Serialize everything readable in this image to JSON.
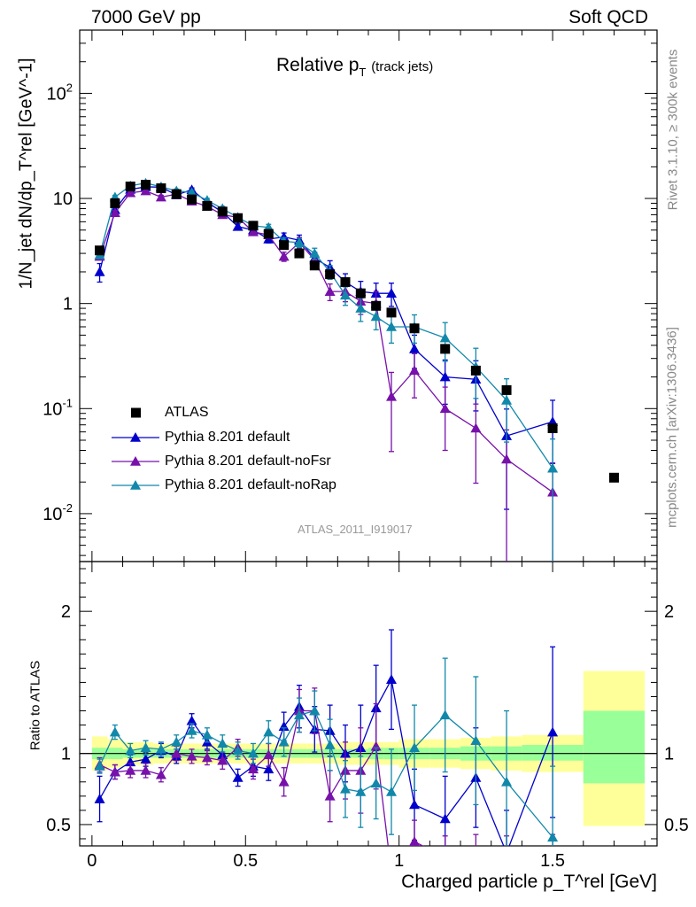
{
  "header": {
    "left": "7000 GeV pp",
    "right": "Soft QCD"
  },
  "main_plot": {
    "title": "Relative p",
    "title_sub": "T",
    "title_extra": "(track jets)",
    "ylabel": "1/N_jet dN/dp_T^rel [GeV^-1]",
    "watermark": "ATLAS_2011_I919017"
  },
  "ratio_plot": {
    "ylabel": "Ratio to ATLAS"
  },
  "side_notes": {
    "rivet": "Rivet 3.1.10, ≥ 300k events",
    "mcplots": "mcplots.cern.ch [arXiv:1306.3436]"
  },
  "xlabel": "Charged particle p_T^rel [GeV]",
  "legend": [
    {
      "label": "ATLAS",
      "color": "#000000",
      "marker": "square"
    },
    {
      "label": "Pythia 8.201 default",
      "color": "#0000cc",
      "marker": "triangle"
    },
    {
      "label": "Pythia 8.201 default-noFsr",
      "color": "#7711aa",
      "marker": "triangle"
    },
    {
      "label": "Pythia 8.201 default-noRap",
      "color": "#1188aa",
      "marker": "triangle"
    }
  ],
  "chart_data": {
    "type": "scatter",
    "x_range": [
      -0.04,
      1.84
    ],
    "main_y_log": true,
    "main_y_range": [
      0.0035,
      400
    ],
    "main_y_ticks": [
      {
        "v": 0.01,
        "label": "10^-2"
      },
      {
        "v": 0.1,
        "label": "10^-1"
      },
      {
        "v": 1,
        "label": "1"
      },
      {
        "v": 10,
        "label": "10"
      },
      {
        "v": 100,
        "label": "10^2"
      }
    ],
    "ratio_y_range": [
      0.35,
      2.35
    ],
    "ratio_y_ticks": [
      0.5,
      1,
      2
    ],
    "x_ticks": [
      0,
      0.5,
      1,
      1.5
    ],
    "x_tick_labels": [
      "0",
      "0.5",
      "1",
      "1.5"
    ],
    "data": {
      "name": "ATLAS",
      "x": [
        0.025,
        0.075,
        0.125,
        0.175,
        0.225,
        0.275,
        0.325,
        0.375,
        0.425,
        0.475,
        0.525,
        0.575,
        0.625,
        0.675,
        0.725,
        0.775,
        0.825,
        0.875,
        0.925,
        0.975,
        1.05,
        1.15,
        1.25,
        1.35,
        1.5,
        1.7
      ],
      "y": [
        3.2,
        9.0,
        13.0,
        13.5,
        12.5,
        11.0,
        9.8,
        8.5,
        7.5,
        6.5,
        5.5,
        4.6,
        3.6,
        3.0,
        2.3,
        1.9,
        1.6,
        1.25,
        0.95,
        0.82,
        0.58,
        0.37,
        0.23,
        0.15,
        0.065,
        0.022
      ],
      "band_edges": [
        0.0,
        0.05,
        0.1,
        0.15,
        0.2,
        0.25,
        0.3,
        0.35,
        0.4,
        0.45,
        0.5,
        0.55,
        0.6,
        0.65,
        0.7,
        0.75,
        0.8,
        0.85,
        0.9,
        0.95,
        1.0,
        1.1,
        1.2,
        1.3,
        1.4,
        1.6,
        1.8
      ],
      "stat_band": [
        [
          0.96,
          1.04
        ],
        [
          0.96,
          1.04
        ],
        [
          0.97,
          1.03
        ],
        [
          0.97,
          1.03
        ],
        [
          0.97,
          1.03
        ],
        [
          0.97,
          1.03
        ],
        [
          0.97,
          1.03
        ],
        [
          0.97,
          1.03
        ],
        [
          0.97,
          1.03
        ],
        [
          0.97,
          1.03
        ],
        [
          0.97,
          1.03
        ],
        [
          0.97,
          1.03
        ],
        [
          0.97,
          1.03
        ],
        [
          0.97,
          1.03
        ],
        [
          0.97,
          1.03
        ],
        [
          0.97,
          1.03
        ],
        [
          0.97,
          1.03
        ],
        [
          0.97,
          1.03
        ],
        [
          0.96,
          1.04
        ],
        [
          0.96,
          1.04
        ],
        [
          0.96,
          1.04
        ],
        [
          0.96,
          1.04
        ],
        [
          0.95,
          1.05
        ],
        [
          0.95,
          1.05
        ],
        [
          0.95,
          1.06
        ],
        [
          0.79,
          1.3
        ]
      ],
      "total_band": [
        [
          0.88,
          1.12
        ],
        [
          0.9,
          1.1
        ],
        [
          0.92,
          1.08
        ],
        [
          0.92,
          1.08
        ],
        [
          0.93,
          1.07
        ],
        [
          0.93,
          1.07
        ],
        [
          0.93,
          1.07
        ],
        [
          0.93,
          1.07
        ],
        [
          0.93,
          1.07
        ],
        [
          0.93,
          1.07
        ],
        [
          0.93,
          1.07
        ],
        [
          0.93,
          1.07
        ],
        [
          0.93,
          1.07
        ],
        [
          0.93,
          1.07
        ],
        [
          0.93,
          1.07
        ],
        [
          0.93,
          1.07
        ],
        [
          0.92,
          1.08
        ],
        [
          0.92,
          1.08
        ],
        [
          0.92,
          1.08
        ],
        [
          0.92,
          1.08
        ],
        [
          0.9,
          1.1
        ],
        [
          0.9,
          1.1
        ],
        [
          0.89,
          1.11
        ],
        [
          0.88,
          1.12
        ],
        [
          0.87,
          1.13
        ],
        [
          0.49,
          1.58
        ]
      ]
    },
    "series": [
      {
        "name": "Pythia 8.201 default",
        "x": [
          0.025,
          0.075,
          0.125,
          0.175,
          0.225,
          0.275,
          0.325,
          0.375,
          0.425,
          0.475,
          0.525,
          0.575,
          0.625,
          0.675,
          0.725,
          0.775,
          0.825,
          0.875,
          0.925,
          0.975,
          1.05,
          1.15,
          1.25,
          1.35,
          1.5
        ],
        "y": [
          2.0,
          7.8,
          12.2,
          12.9,
          12.8,
          10.8,
          12.1,
          9.2,
          7.4,
          5.4,
          5.0,
          4.1,
          4.3,
          4.0,
          2.7,
          2.2,
          1.6,
          1.3,
          1.25,
          1.25,
          0.37,
          0.2,
          0.19,
          0.055,
          0.075
        ],
        "y_err_rel": [
          0.2,
          0.05,
          0.04,
          0.04,
          0.04,
          0.04,
          0.04,
          0.04,
          0.05,
          0.06,
          0.07,
          0.08,
          0.09,
          0.12,
          0.14,
          0.16,
          0.2,
          0.25,
          0.25,
          0.25,
          0.35,
          0.45,
          0.5,
          0.8,
          0.6
        ],
        "ratio": [
          0.68,
          0.87,
          0.94,
          0.96,
          1.02,
          0.98,
          1.23,
          1.08,
          0.99,
          0.83,
          0.91,
          0.89,
          1.19,
          1.33,
          1.17,
          1.16,
          1.0,
          1.04,
          1.32,
          1.52,
          0.64,
          0.54,
          0.83,
          0.3,
          1.15
        ],
        "ratio_err": [
          0.16,
          0.05,
          0.05,
          0.05,
          0.05,
          0.05,
          0.05,
          0.05,
          0.06,
          0.06,
          0.07,
          0.08,
          0.1,
          0.15,
          0.16,
          0.18,
          0.2,
          0.3,
          0.3,
          0.35,
          0.25,
          0.3,
          0.35,
          0.3,
          0.6
        ],
        "color": "#0000cc"
      },
      {
        "name": "Pythia 8.201 default-noFsr",
        "x": [
          0.025,
          0.075,
          0.125,
          0.175,
          0.225,
          0.275,
          0.325,
          0.375,
          0.425,
          0.475,
          0.525,
          0.575,
          0.625,
          0.675,
          0.725,
          0.775,
          0.825,
          0.875,
          0.925,
          0.975,
          1.05,
          1.15,
          1.25,
          1.35,
          1.5
        ],
        "y": [
          2.8,
          7.3,
          11.3,
          11.8,
          10.3,
          11.0,
          9.4,
          8.4,
          7.0,
          6.6,
          4.8,
          4.5,
          2.8,
          3.8,
          2.6,
          1.3,
          1.3,
          1.05,
          1.0,
          0.13,
          0.23,
          0.1,
          0.065,
          0.033,
          0.016
        ],
        "y_err_rel": [
          0.06,
          0.05,
          0.04,
          0.04,
          0.04,
          0.04,
          0.04,
          0.04,
          0.05,
          0.06,
          0.07,
          0.08,
          0.1,
          0.12,
          0.14,
          0.18,
          0.2,
          0.25,
          0.3,
          0.7,
          0.45,
          0.6,
          0.7,
          0.9,
          0.9
        ],
        "ratio": [
          0.92,
          0.87,
          0.88,
          0.88,
          0.85,
          1.0,
          0.98,
          0.97,
          0.95,
          1.04,
          0.89,
          0.99,
          0.8,
          1.3,
          1.3,
          0.7,
          0.88,
          0.88,
          1.05,
          0.16,
          0.38,
          0.27,
          0.28,
          0.22,
          0.23
        ],
        "ratio_err": [
          0.05,
          0.05,
          0.05,
          0.05,
          0.05,
          0.05,
          0.05,
          0.05,
          0.06,
          0.06,
          0.07,
          0.08,
          0.1,
          0.15,
          0.16,
          0.18,
          0.2,
          0.3,
          0.3,
          0.1,
          0.15,
          0.15,
          0.15,
          0.2,
          0.2
        ],
        "color": "#7711aa"
      },
      {
        "name": "Pythia 8.201 default-noRap",
        "x": [
          0.025,
          0.075,
          0.125,
          0.175,
          0.225,
          0.275,
          0.325,
          0.375,
          0.425,
          0.475,
          0.525,
          0.575,
          0.625,
          0.675,
          0.725,
          0.775,
          0.825,
          0.875,
          0.925,
          0.975,
          1.05,
          1.15,
          1.25,
          1.35,
          1.5
        ],
        "y": [
          2.9,
          10.3,
          13.2,
          14.0,
          12.9,
          11.8,
          11.4,
          9.6,
          8.0,
          6.6,
          5.5,
          5.3,
          3.9,
          3.8,
          3.0,
          2.0,
          1.2,
          0.9,
          0.75,
          0.6,
          0.6,
          0.47,
          0.25,
          0.12,
          0.027
        ],
        "y_err_rel": [
          0.05,
          0.04,
          0.04,
          0.04,
          0.04,
          0.04,
          0.04,
          0.04,
          0.05,
          0.05,
          0.06,
          0.07,
          0.08,
          0.1,
          0.12,
          0.15,
          0.2,
          0.25,
          0.25,
          0.3,
          0.3,
          0.4,
          0.5,
          0.6,
          0.9
        ],
        "ratio": [
          0.91,
          1.15,
          1.02,
          1.04,
          1.03,
          1.08,
          1.16,
          1.13,
          1.07,
          1.02,
          1.0,
          1.15,
          1.08,
          1.27,
          1.3,
          1.06,
          0.75,
          0.73,
          0.79,
          0.73,
          1.04,
          1.27,
          1.09,
          0.8,
          0.41
        ],
        "ratio_err": [
          0.05,
          0.05,
          0.05,
          0.05,
          0.05,
          0.05,
          0.05,
          0.05,
          0.06,
          0.06,
          0.07,
          0.08,
          0.1,
          0.12,
          0.14,
          0.18,
          0.2,
          0.25,
          0.25,
          0.3,
          0.3,
          0.4,
          0.45,
          0.5,
          0.5
        ],
        "color": "#1188aa"
      }
    ]
  }
}
